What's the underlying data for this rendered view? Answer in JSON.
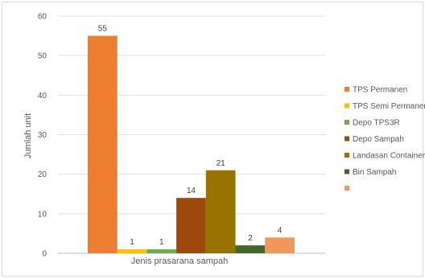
{
  "chart_data": {
    "type": "bar",
    "title": "",
    "xlabel": "Jenis prasarana sampah",
    "ylabel": "Jumlah unit",
    "ylim": [
      0,
      60
    ],
    "yticks": [
      0,
      10,
      20,
      30,
      40,
      50,
      60
    ],
    "grid": true,
    "legend_position": "right",
    "series": [
      {
        "name": "TPS Permanen",
        "value": 55,
        "color": "#ED7D31"
      },
      {
        "name": "TPS Semi Permanen",
        "value": 1,
        "color": "#FFC000"
      },
      {
        "name": "Depo TPS3R",
        "value": 1,
        "color": "#70AD47"
      },
      {
        "name": "Depo Sampah",
        "value": 14,
        "color": "#9E480E"
      },
      {
        "name": "Landasan Container",
        "value": 21,
        "color": "#997300"
      },
      {
        "name": "Bin Sampah",
        "value": 2,
        "color": "#43682B"
      },
      {
        "name": "",
        "value": 4,
        "color": "#F1975A"
      }
    ]
  }
}
